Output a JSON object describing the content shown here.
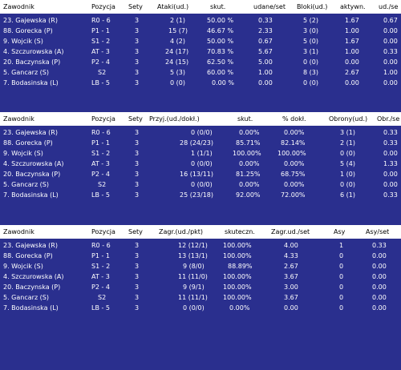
{
  "attack": {
    "headers": [
      "Zawodnik",
      "Pozycja",
      "Sety",
      "Ataki(ud.)",
      "skut.",
      "udane/set",
      "Bloki(ud.)",
      "aktywn.",
      "ud./se"
    ],
    "rows": [
      [
        "23. Gajewska (R)",
        "R0 - 6",
        "3",
        "2 (1)",
        "50.00 %",
        "0.33",
        "5 (2)",
        "1.67",
        "0.67"
      ],
      [
        "88. Gorecka (P)",
        "P1 - 1",
        "3",
        "15 (7)",
        "46.67 %",
        "2.33",
        "3 (0)",
        "1.00",
        "0.00"
      ],
      [
        "9. Wojcik (S)",
        "S1 - 2",
        "3",
        "4 (2)",
        "50.00 %",
        "0.67",
        "5 (0)",
        "1.67",
        "0.00"
      ],
      [
        "4. Szczurowska (A)",
        "AT - 3",
        "3",
        "24 (17)",
        "70.83 %",
        "5.67",
        "3 (1)",
        "1.00",
        "0.33"
      ],
      [
        "20. Baczynska (P)",
        "P2 - 4",
        "3",
        "24 (15)",
        "62.50 %",
        "5.00",
        "0 (0)",
        "0.00",
        "0.00"
      ],
      [
        "5. Gancarz (S)",
        "S2",
        "3",
        "5 (3)",
        "60.00 %",
        "1.00",
        "8 (3)",
        "2.67",
        "1.00"
      ],
      [
        "7. Bodasinska (L)",
        "LB - 5",
        "3",
        "0 (0)",
        "0.00 %",
        "0.00",
        "0 (0)",
        "0.00",
        "0.00"
      ]
    ]
  },
  "reception": {
    "headers": [
      "Zawodnik",
      "Pozycja",
      "Sety",
      "Przyj.(ud./dokł.)",
      "skut.",
      "% dokł.",
      "Obrony(ud.)",
      "Obr./se"
    ],
    "rows": [
      [
        "23. Gajewska (R)",
        "R0 - 6",
        "3",
        "0 (0/0)",
        "0.00%",
        "0.00%",
        "3 (1)",
        "0.33"
      ],
      [
        "88. Gorecka (P)",
        "P1 - 1",
        "3",
        "28 (24/23)",
        "85.71%",
        "82.14%",
        "2 (1)",
        "0.33"
      ],
      [
        "9. Wojcik (S)",
        "S1 - 2",
        "3",
        "1 (1/1)",
        "100.00%",
        "100.00%",
        "0 (0)",
        "0.00"
      ],
      [
        "4. Szczurowska (A)",
        "AT - 3",
        "3",
        "0 (0/0)",
        "0.00%",
        "0.00%",
        "5 (4)",
        "1.33"
      ],
      [
        "20. Baczynska (P)",
        "P2 - 4",
        "3",
        "16 (13/11)",
        "81.25%",
        "68.75%",
        "1 (0)",
        "0.00"
      ],
      [
        "5. Gancarz (S)",
        "S2",
        "3",
        "0 (0/0)",
        "0.00%",
        "0.00%",
        "0 (0)",
        "0.00"
      ],
      [
        "7. Bodasinska (L)",
        "LB - 5",
        "3",
        "25 (23/18)",
        "92.00%",
        "72.00%",
        "6 (1)",
        "0.33"
      ]
    ]
  },
  "serve": {
    "headers": [
      "Zawodnik",
      "Pozycja",
      "Sety",
      "Zagr.(ud./pkt)",
      "skuteczn.",
      "Zagr.ud./set",
      "Asy",
      "Asy/set"
    ],
    "rows": [
      [
        "23. Gajewska (R)",
        "R0 - 6",
        "3",
        "12 (12/1)",
        "100.00%",
        "4.00",
        "1",
        "0.33"
      ],
      [
        "88. Gorecka (P)",
        "P1 - 1",
        "3",
        "13 (13/1)",
        "100.00%",
        "4.33",
        "0",
        "0.00"
      ],
      [
        "9. Wojcik (S)",
        "S1 - 2",
        "3",
        "9 (8/0)",
        "88.89%",
        "2.67",
        "0",
        "0.00"
      ],
      [
        "4. Szczurowska (A)",
        "AT - 3",
        "3",
        "11 (11/0)",
        "100.00%",
        "3.67",
        "0",
        "0.00"
      ],
      [
        "20. Baczynska (P)",
        "P2 - 4",
        "3",
        "9 (9/1)",
        "100.00%",
        "3.00",
        "0",
        "0.00"
      ],
      [
        "5. Gancarz (S)",
        "S2",
        "3",
        "11 (11/1)",
        "100.00%",
        "3.67",
        "0",
        "0.00"
      ],
      [
        "7. Bodasinska (L)",
        "LB - 5",
        "3",
        "0 (0/0)",
        "0.00%",
        "0.00",
        "0",
        "0.00"
      ]
    ]
  }
}
